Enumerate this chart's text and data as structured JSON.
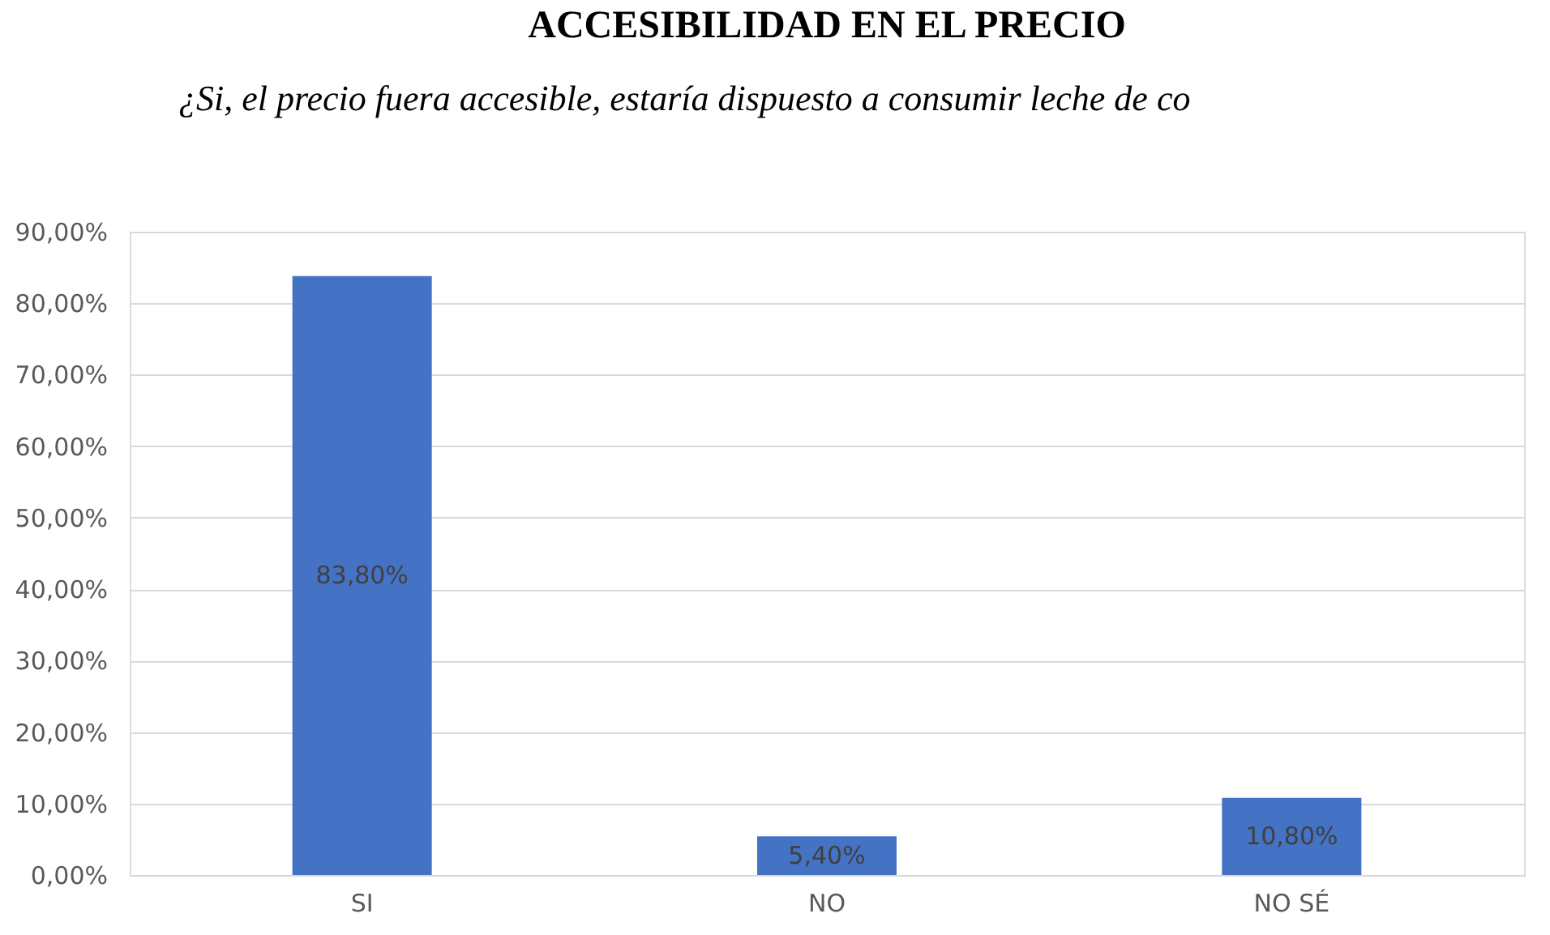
{
  "chart_data": {
    "type": "bar",
    "title": "ACCESIBILIDAD EN EL PRECIO",
    "annotations": [
      "¿Si, el precio fuera accesible, estaría dispuesto a consumir leche de co"
    ],
    "categories": [
      "SI",
      "NO",
      "NO SÉ"
    ],
    "values": [
      83.8,
      5.4,
      10.8
    ],
    "value_labels": [
      "83,80%",
      "5,40%",
      "10,80%"
    ],
    "color": "#4472c4",
    "ylim": [
      0,
      90
    ],
    "yticks": [
      {
        "value": 0,
        "label": "0,00%"
      },
      {
        "value": 10,
        "label": "10,00%"
      },
      {
        "value": 20,
        "label": "20,00%"
      },
      {
        "value": 30,
        "label": "30,00%"
      },
      {
        "value": 40,
        "label": "40,00%"
      },
      {
        "value": 50,
        "label": "50,00%"
      },
      {
        "value": 60,
        "label": "60,00%"
      },
      {
        "value": 70,
        "label": "70,00%"
      },
      {
        "value": 80,
        "label": "80,00%"
      },
      {
        "value": 90,
        "label": "90,00%"
      }
    ],
    "grid": "y"
  }
}
